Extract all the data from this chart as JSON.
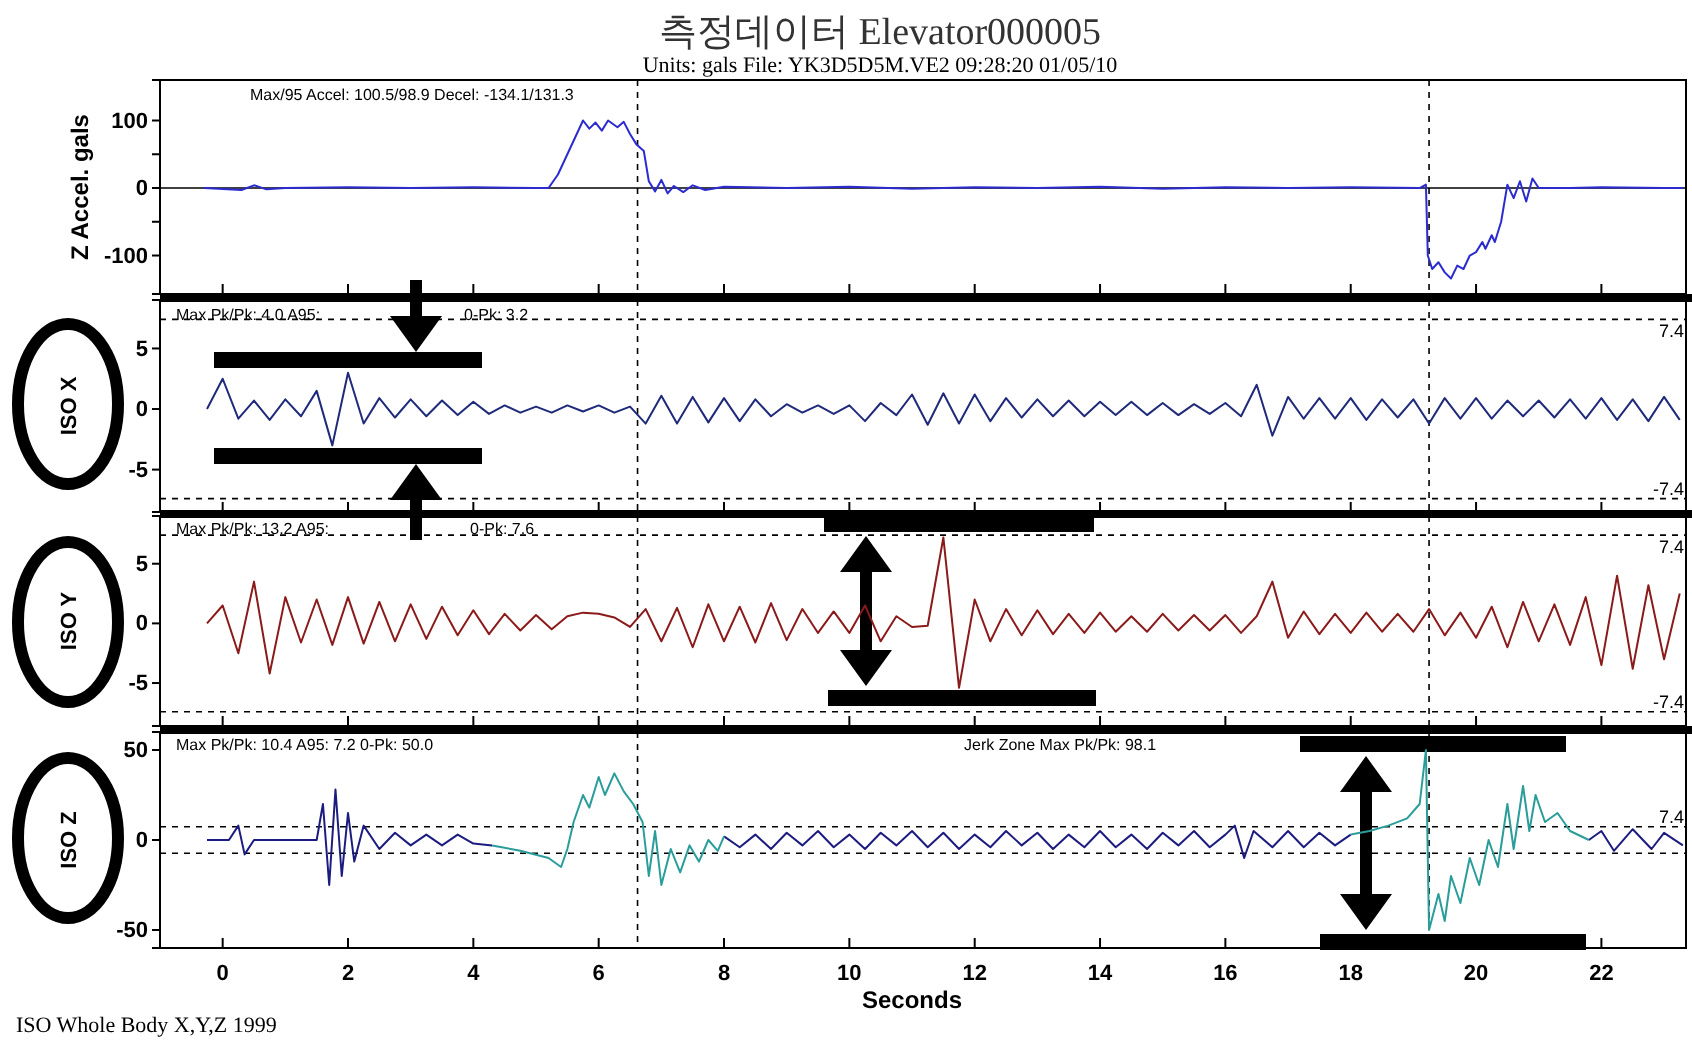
{
  "chart_data": [
    {
      "type": "line",
      "title": "측정데이터    Elevator000005",
      "subtitle": "Units: gals       File: YK3D5D5M.VE2          09:28:20 01/05/10",
      "ylabel": "Z Accel. gals",
      "annotations": [
        "Max/95 Accel: 100.5/98.9 Decel: -134.1/131.3"
      ],
      "xlim": [
        -1,
        23.35
      ],
      "xticks": [
        0,
        2,
        4,
        6,
        8,
        10,
        12,
        14,
        16,
        18,
        20,
        22
      ],
      "ylim": [
        -157,
        160
      ],
      "yticks": [
        -100,
        {
          "value": -50,
          "label": null
        },
        0,
        {
          "value": 50,
          "label": null
        },
        100
      ],
      "tick_labels": "y",
      "marker": "none",
      "line_style": "solid",
      "ref_lines": [
        {
          "axis": "y",
          "value": 0,
          "color": "#000000",
          "line_style": "solid"
        },
        {
          "axis": "x",
          "value": 6.62,
          "color": "#000000",
          "line_style": "dashed"
        },
        {
          "axis": "x",
          "value": 19.25,
          "color": "#000000",
          "line_style": "dashed"
        }
      ],
      "series": [
        {
          "color": "#2b2bd0",
          "x": [
            -0.3,
            0.3,
            0.5,
            0.7,
            1,
            2,
            3,
            4,
            5,
            5.2,
            5.35,
            5.5,
            5.65,
            5.75,
            5.85,
            5.95,
            6.05,
            6.15,
            6.3,
            6.4,
            6.5,
            6.6,
            6.72,
            6.8,
            6.9,
            7.0,
            7.1,
            7.2,
            7.35,
            7.5,
            7.7,
            8,
            9,
            10,
            11,
            12,
            13,
            14,
            15,
            16,
            17,
            18,
            19.1,
            19.2,
            19.23,
            19.3,
            19.4,
            19.5,
            19.6,
            19.7,
            19.8,
            19.9,
            20.0,
            20.1,
            20.15,
            20.25,
            20.3,
            20.4,
            20.5,
            20.6,
            20.7,
            20.8,
            20.9,
            21.0,
            21.5,
            22,
            23,
            23.3
          ],
          "values": [
            0,
            -3,
            4,
            -2,
            0,
            1,
            0,
            1,
            0,
            0,
            20,
            50,
            80,
            100,
            88,
            97,
            85,
            100,
            90,
            98,
            80,
            65,
            55,
            10,
            -5,
            12,
            -8,
            3,
            -6,
            4,
            -3,
            2,
            0,
            2,
            -1,
            1,
            0,
            2,
            -1,
            1,
            0,
            1,
            0,
            5,
            -100,
            -120,
            -110,
            -125,
            -134,
            -115,
            -120,
            -100,
            -95,
            -80,
            -90,
            -70,
            -80,
            -50,
            5,
            -15,
            10,
            -20,
            14,
            0,
            0,
            1,
            0,
            0
          ]
        }
      ]
    },
    {
      "type": "line",
      "ylabel": "ISO X",
      "annotations": [
        "Max Pk/Pk: 4.0  A95:",
        "0-Pk: 3.2"
      ],
      "xlim": [
        -1,
        23.35
      ],
      "xticks": [
        0,
        2,
        4,
        6,
        8,
        10,
        12,
        14,
        16,
        18,
        20,
        22
      ],
      "ylim": [
        -8.5,
        9
      ],
      "yticks": [
        -5,
        0,
        5
      ],
      "tick_labels": "y",
      "marker": "none",
      "line_style": "solid",
      "ref_lines": [
        {
          "axis": "y",
          "value": 7.4,
          "label": "7.4",
          "line_style": "dashed",
          "color": "#000000"
        },
        {
          "axis": "y",
          "value": -7.4,
          "label": "-7.4",
          "line_style": "dashed",
          "color": "#000000"
        },
        {
          "axis": "x",
          "value": 6.62,
          "color": "#000000",
          "line_style": "dashed"
        },
        {
          "axis": "x",
          "value": 19.25,
          "color": "#000000",
          "line_style": "dashed"
        }
      ],
      "x": [
        -0.25,
        0,
        0.25,
        0.5,
        0.75,
        1,
        1.25,
        1.5,
        1.75,
        2,
        2.25,
        2.5,
        2.75,
        3,
        3.25,
        3.5,
        3.75,
        4,
        4.25,
        4.5,
        4.75,
        5,
        5.25,
        5.5,
        5.75,
        6,
        6.25,
        6.5,
        6.75,
        7,
        7.25,
        7.5,
        7.75,
        8,
        8.25,
        8.5,
        8.75,
        9,
        9.25,
        9.5,
        9.75,
        10,
        10.25,
        10.5,
        10.75,
        11,
        11.25,
        11.5,
        11.75,
        12,
        12.25,
        12.5,
        12.75,
        13,
        13.25,
        13.5,
        13.75,
        14,
        14.25,
        14.5,
        14.75,
        15,
        15.25,
        15.5,
        15.75,
        16,
        16.25,
        16.5,
        16.75,
        17,
        17.25,
        17.5,
        17.75,
        18,
        18.25,
        18.5,
        18.75,
        19,
        19.25,
        19.5,
        19.75,
        20,
        20.25,
        20.5,
        20.75,
        21,
        21.25,
        21.5,
        21.75,
        22,
        22.25,
        22.5,
        22.75,
        23,
        23.25
      ],
      "series": [
        {
          "color": "#1f2a7a",
          "values": [
            0,
            2.5,
            -0.8,
            0.7,
            -0.9,
            0.8,
            -0.6,
            1.5,
            -3.0,
            3.0,
            -1.2,
            0.9,
            -0.7,
            0.8,
            -0.6,
            0.7,
            -0.5,
            0.6,
            -0.4,
            0.3,
            -0.3,
            0.2,
            -0.3,
            0.3,
            -0.2,
            0.3,
            -0.3,
            0.2,
            -1.2,
            1.1,
            -1.2,
            1.0,
            -1.1,
            0.9,
            -1.0,
            0.8,
            -0.6,
            0.4,
            -0.3,
            0.3,
            -0.4,
            0.3,
            -1.0,
            0.5,
            -0.5,
            1.2,
            -1.3,
            1.3,
            -1.2,
            1.2,
            -1.0,
            0.9,
            -0.7,
            0.8,
            -0.6,
            0.7,
            -0.6,
            0.6,
            -0.5,
            0.6,
            -0.5,
            0.5,
            -0.5,
            0.4,
            -0.4,
            0.5,
            -0.6,
            2.0,
            -2.2,
            1.0,
            -0.8,
            0.9,
            -0.8,
            0.9,
            -0.9,
            0.8,
            -0.7,
            0.8,
            -1.2,
            0.9,
            -0.8,
            0.9,
            -0.8,
            0.7,
            -0.6,
            0.7,
            -0.7,
            0.8,
            -0.8,
            0.9,
            -0.9,
            0.8,
            -1.0,
            1.0,
            -0.9
          ]
        }
      ]
    },
    {
      "type": "line",
      "ylabel": "ISO Y",
      "annotations": [
        "Max Pk/Pk: 13.2  A95:",
        "0-Pk: 7.6"
      ],
      "xlim": [
        -1,
        23.35
      ],
      "xticks": [
        0,
        2,
        4,
        6,
        8,
        10,
        12,
        14,
        16,
        18,
        20,
        22
      ],
      "ylim": [
        -8.6,
        9
      ],
      "yticks": [
        -5,
        0,
        5
      ],
      "tick_labels": "y",
      "marker": "none",
      "line_style": "solid",
      "ref_lines": [
        {
          "axis": "y",
          "value": 7.4,
          "label": "7.4",
          "line_style": "dashed",
          "color": "#000000"
        },
        {
          "axis": "y",
          "value": -7.4,
          "label": "-7.4",
          "line_style": "dashed",
          "color": "#000000"
        },
        {
          "axis": "x",
          "value": 6.62,
          "color": "#000000",
          "line_style": "dashed"
        },
        {
          "axis": "x",
          "value": 19.25,
          "color": "#000000",
          "line_style": "dashed"
        }
      ],
      "x": [
        -0.25,
        0,
        0.25,
        0.5,
        0.75,
        1,
        1.25,
        1.5,
        1.75,
        2,
        2.25,
        2.5,
        2.75,
        3,
        3.25,
        3.5,
        3.75,
        4,
        4.25,
        4.5,
        4.75,
        5,
        5.25,
        5.5,
        5.75,
        6,
        6.25,
        6.5,
        6.75,
        7,
        7.25,
        7.5,
        7.75,
        8,
        8.25,
        8.5,
        8.75,
        9,
        9.25,
        9.5,
        9.75,
        10,
        10.25,
        10.5,
        10.75,
        11,
        11.25,
        11.5,
        11.75,
        12,
        12.25,
        12.5,
        12.75,
        13,
        13.25,
        13.5,
        13.75,
        14,
        14.25,
        14.5,
        14.75,
        15,
        15.25,
        15.5,
        15.75,
        16,
        16.25,
        16.5,
        16.75,
        17,
        17.25,
        17.5,
        17.75,
        18,
        18.25,
        18.5,
        18.75,
        19,
        19.25,
        19.5,
        19.75,
        20,
        20.25,
        20.5,
        20.75,
        21,
        21.25,
        21.5,
        21.75,
        22,
        22.25,
        22.5,
        22.75,
        23,
        23.25
      ],
      "series": [
        {
          "color": "#8b1a1a",
          "values": [
            0,
            1.5,
            -2.5,
            3.5,
            -4.2,
            2.2,
            -1.6,
            2.0,
            -1.8,
            2.2,
            -1.7,
            1.8,
            -1.5,
            1.6,
            -1.3,
            1.4,
            -1.0,
            1.1,
            -0.9,
            0.8,
            -0.6,
            0.7,
            -0.5,
            0.6,
            0.9,
            0.8,
            0.5,
            -0.3,
            1.2,
            -1.5,
            1.3,
            -2.0,
            1.6,
            -1.5,
            1.4,
            -1.6,
            1.7,
            -1.4,
            1.2,
            -0.8,
            1.0,
            -0.8,
            1.5,
            -1.5,
            0.6,
            -0.3,
            -0.2,
            7.2,
            -5.4,
            2.0,
            -1.5,
            1.2,
            -1.0,
            1.1,
            -0.9,
            0.8,
            -0.8,
            0.9,
            -0.7,
            0.6,
            -0.7,
            0.8,
            -0.6,
            0.7,
            -0.6,
            0.7,
            -0.8,
            0.6,
            3.5,
            -1.2,
            1.0,
            -0.9,
            0.8,
            -0.8,
            0.9,
            -0.7,
            0.8,
            -0.7,
            1.2,
            -1.0,
            0.9,
            -1.2,
            1.4,
            -2.0,
            1.8,
            -1.5,
            1.6,
            -1.8,
            2.2,
            -3.5,
            4.0,
            -3.8,
            3.2,
            -3.0,
            2.5
          ]
        }
      ]
    },
    {
      "type": "line",
      "ylabel": "ISO Z",
      "xlabel": "Seconds",
      "annotations": [
        "Max Pk/Pk: 10.4  A95: 7.2  0-Pk: 50.0",
        "Jerk Zone Max Pk/Pk: 98.1",
        "ISO Whole Body X,Y,Z  1999"
      ],
      "xlim": [
        -1,
        23.35
      ],
      "xticks": [
        0,
        2,
        4,
        6,
        8,
        10,
        12,
        14,
        16,
        18,
        20,
        22
      ],
      "ylim": [
        -60,
        60
      ],
      "yticks": [
        -50,
        0,
        50
      ],
      "marker": "none",
      "line_style": "solid",
      "ref_lines": [
        {
          "axis": "y",
          "value": 7.4,
          "label": "7.4",
          "line_style": "dashed",
          "color": "#000000"
        },
        {
          "axis": "y",
          "value": -7.4,
          "line_style": "dashed",
          "color": "#000000"
        },
        {
          "axis": "x",
          "value": 6.62,
          "color": "#000000",
          "line_style": "dashed"
        },
        {
          "axis": "x",
          "value": 19.25,
          "color": "#000000",
          "line_style": "dashed"
        }
      ],
      "series": [
        {
          "color": "#1c1c80",
          "x": [
            -0.25,
            0.1,
            0.25,
            0.35,
            0.5,
            1,
            1.5,
            1.6,
            1.7,
            1.8,
            1.9,
            2,
            2.1,
            2.25,
            2.5,
            2.75,
            3,
            3.25,
            3.5,
            3.75,
            4,
            4.3,
            6,
            8,
            8.25,
            8.5,
            8.75,
            9,
            9.25,
            9.5,
            9.75,
            10,
            10.25,
            10.5,
            10.75,
            11,
            11.25,
            11.5,
            11.75,
            12,
            12.25,
            12.5,
            12.75,
            13,
            13.25,
            13.5,
            13.75,
            14,
            14.25,
            14.5,
            14.75,
            15,
            15.25,
            15.5,
            15.75,
            16,
            16.15,
            16.3,
            16.45,
            16.75,
            17,
            17.25,
            17.5,
            17.75,
            18,
            20,
            21.8,
            22,
            22.2,
            22.5,
            22.8,
            23,
            23.3
          ],
          "values": [
            0,
            0,
            8,
            -8,
            0,
            0,
            0,
            20,
            -25,
            28,
            -20,
            15,
            -12,
            8,
            -5,
            4,
            -3,
            3,
            -3,
            3,
            -2,
            -3,
            null,
            2,
            -4,
            3,
            -5,
            4,
            -3,
            5,
            -4,
            3,
            -5,
            4,
            -3,
            5,
            -4,
            4,
            -5,
            3,
            -4,
            5,
            -3,
            4,
            -5,
            3,
            -4,
            5,
            -4,
            3,
            -5,
            4,
            -3,
            5,
            -4,
            3,
            8,
            -10,
            5,
            -4,
            5,
            -4,
            4,
            -3,
            3,
            null,
            0,
            5,
            -6,
            6,
            -5,
            4,
            -3
          ]
        },
        {
          "color": "#2a9d9a",
          "x": [
            4.3,
            4.75,
            5.2,
            5.4,
            5.5,
            5.6,
            5.75,
            5.85,
            6,
            6.1,
            6.25,
            6.4,
            6.55,
            6.7,
            6.8,
            6.9,
            7,
            7.15,
            7.3,
            7.45,
            7.6,
            7.75,
            7.9,
            8,
            12,
            18,
            18.3,
            18.6,
            18.9,
            19.1,
            19.2,
            19.25,
            19.4,
            19.5,
            19.6,
            19.75,
            19.9,
            20.05,
            20.2,
            20.35,
            20.5,
            20.6,
            20.75,
            20.85,
            20.95,
            21.1,
            21.3,
            21.5,
            21.8
          ],
          "values": [
            -3,
            -6,
            -10,
            -15,
            -5,
            10,
            25,
            18,
            35,
            25,
            37,
            27,
            20,
            10,
            -20,
            5,
            -25,
            -5,
            -18,
            -3,
            -12,
            0,
            -6,
            2,
            null,
            3,
            5,
            8,
            12,
            20,
            50,
            -50,
            -30,
            -45,
            -20,
            -35,
            -10,
            -25,
            0,
            -15,
            20,
            -5,
            30,
            5,
            25,
            10,
            15,
            5,
            0
          ]
        }
      ]
    }
  ]
}
